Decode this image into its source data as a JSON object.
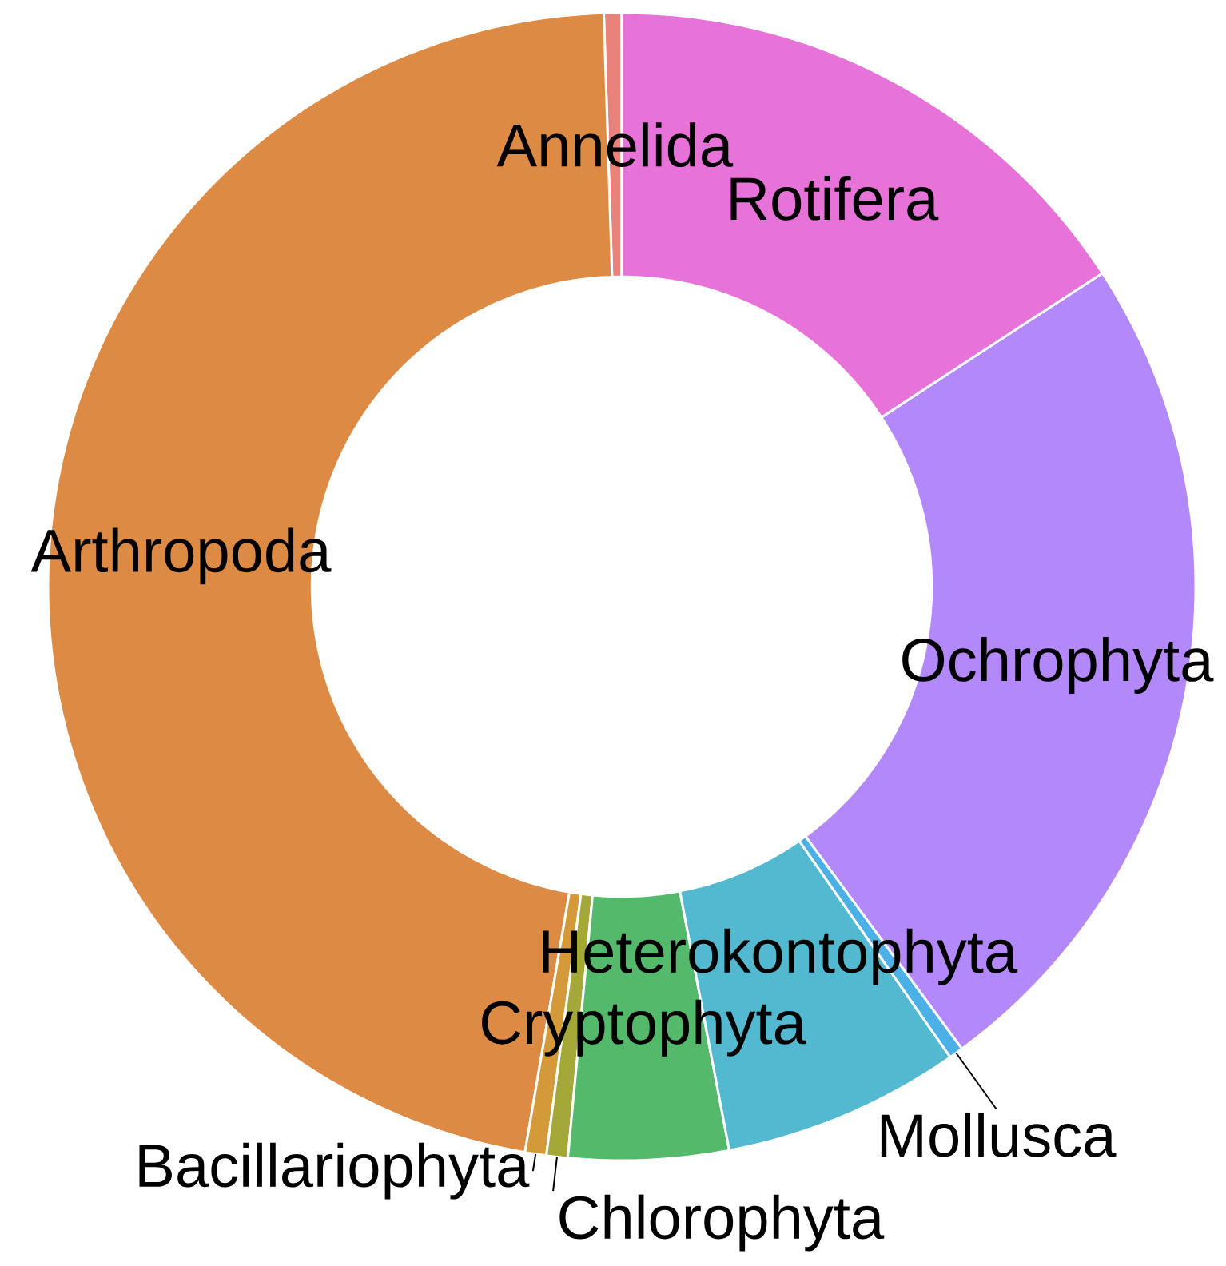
{
  "chart_data": {
    "type": "donut",
    "categories": [
      "Annelida",
      "Arthropoda",
      "Bacillariophyta",
      "Chlorophyta",
      "Cryptophyta",
      "Heterokontophyta",
      "Mollusca",
      "Ochrophyta",
      "Rotifera"
    ],
    "values": [
      0.5,
      46.8,
      0.6,
      0.6,
      4.5,
      6.7,
      0.4,
      24.1,
      15.8
    ],
    "colors": [
      "#e8827a",
      "#dd8a44",
      "#d49a3a",
      "#a3a838",
      "#55b96b",
      "#52b9d0",
      "#4ab0e6",
      "#b388f9",
      "#e772d8"
    ]
  }
}
